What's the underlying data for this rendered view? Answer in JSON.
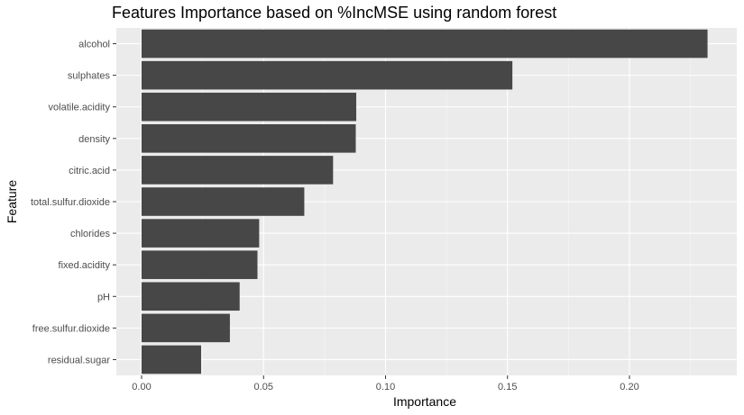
{
  "chart_data": {
    "type": "bar",
    "orientation": "horizontal",
    "title": "Features Importance based on %IncMSE using random forest",
    "xlabel": "Importance",
    "ylabel": "Feature",
    "xlim": [
      0,
      0.235
    ],
    "grid": true,
    "x_ticks": [
      "0.00",
      "0.05",
      "0.10",
      "0.15",
      "0.20"
    ],
    "categories": [
      "alcohol",
      "sulphates",
      "volatile.acidity",
      "density",
      "citric.acid",
      "total.sulfur.dioxide",
      "chlorides",
      "fixed.acidity",
      "pH",
      "free.sulfur.dioxide",
      "residual.sugar"
    ],
    "values": [
      0.232,
      0.152,
      0.088,
      0.0878,
      0.0785,
      0.0667,
      0.0482,
      0.0475,
      0.0402,
      0.0362,
      0.0244
    ],
    "colors": {
      "bar": "#474747",
      "panel": "#ebebeb",
      "grid_major": "#ffffff",
      "grid_minor": "#f5f5f5",
      "tick": "#333333",
      "tick_label": "#4d4d4d"
    }
  }
}
